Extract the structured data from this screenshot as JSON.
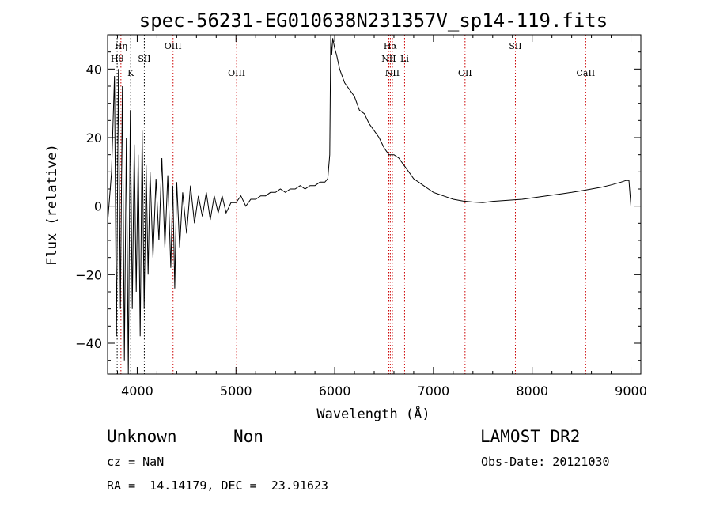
{
  "chart_data": {
    "type": "line",
    "title": "spec-56231-EG010638N231357V_sp14-119.fits",
    "xlabel": "Wavelength (Å)",
    "ylabel": "Flux (relative)",
    "xlim": [
      3700,
      9100
    ],
    "ylim": [
      -49,
      50
    ],
    "x_ticks": [
      4000,
      5000,
      6000,
      7000,
      8000,
      9000
    ],
    "y_ticks": [
      -40,
      -20,
      0,
      20,
      40
    ],
    "x_tick_labels": [
      "4000",
      "5000",
      "6000",
      "7000",
      "8000",
      "9000"
    ],
    "y_tick_labels": [
      "−40",
      "−20",
      "0",
      "20",
      "40"
    ],
    "grid": false,
    "line_color": "#000000",
    "marker_color": "#cc0000",
    "series": [
      {
        "x": [
          3700,
          3740,
          3770,
          3790,
          3810,
          3830,
          3850,
          3870,
          3890,
          3910,
          3930,
          3950,
          3970,
          3990,
          4010,
          4030,
          4050,
          4070,
          4090,
          4110,
          4130,
          4160,
          4190,
          4220,
          4250,
          4280,
          4310,
          4340,
          4360,
          4380,
          4400,
          4430,
          4460,
          4500,
          4540,
          4580,
          4620,
          4660,
          4700,
          4740,
          4780,
          4820,
          4860,
          4900,
          4950,
          5000,
          5050,
          5100,
          5150,
          5200,
          5250,
          5300,
          5350,
          5400,
          5450,
          5500,
          5550,
          5600,
          5650,
          5700,
          5750,
          5800,
          5850,
          5900,
          5930,
          5950,
          5960,
          5970,
          5980,
          6000,
          6020,
          6050,
          6100,
          6150,
          6200,
          6250,
          6300,
          6350,
          6400,
          6450,
          6500,
          6550,
          6600,
          6650,
          6700,
          6750,
          6800,
          6850,
          6900,
          6950,
          7000,
          7050,
          7100,
          7200,
          7300,
          7400,
          7500,
          7600,
          7700,
          7800,
          7900,
          8000,
          8100,
          8200,
          8300,
          8400,
          8500,
          8600,
          8700,
          8800,
          8900,
          8950,
          8980,
          9000
        ],
        "y": [
          -5,
          10,
          38,
          -38,
          40,
          -30,
          35,
          -45,
          20,
          -50,
          28,
          -30,
          18,
          -25,
          15,
          -38,
          22,
          -30,
          12,
          -20,
          10,
          -15,
          8,
          -10,
          14,
          -12,
          9,
          -18,
          6,
          -24,
          7,
          -12,
          4,
          -8,
          6,
          -5,
          3,
          -3,
          4,
          -4,
          3,
          -2,
          3,
          -2,
          1,
          1,
          3,
          0,
          2,
          2,
          3,
          3,
          4,
          4,
          5,
          4,
          5,
          5,
          6,
          5,
          6,
          6,
          7,
          7,
          8,
          15,
          50,
          44,
          49,
          46,
          44,
          40,
          36,
          34,
          32,
          28,
          27,
          24,
          22,
          20,
          17,
          15,
          15,
          14,
          12,
          10,
          8,
          7,
          6,
          5,
          4,
          3.5,
          3,
          2,
          1.5,
          1.2,
          1.0,
          1.4,
          1.6,
          1.8,
          2.0,
          2.4,
          2.8,
          3.2,
          3.6,
          4.0,
          4.5,
          5.0,
          5.5,
          6.2,
          7.0,
          7.5,
          7.5,
          0
        ]
      }
    ],
    "annotation_lines": [
      {
        "label": "Hη",
        "x": 3835,
        "row": 1,
        "color": "#cc0000"
      },
      {
        "label": "Hθ",
        "x": 3797,
        "row": 2,
        "color": "#000000"
      },
      {
        "label": "K",
        "x": 3934,
        "row": 3,
        "color": "#000000"
      },
      {
        "label": "SII",
        "x": 4072,
        "row": 2,
        "color": "#000000"
      },
      {
        "label": "OIII",
        "x": 4363,
        "row": 1,
        "color": "#cc0000"
      },
      {
        "label": "OIII",
        "x": 5007,
        "row": 3,
        "color": "#cc0000"
      },
      {
        "label": "Hα",
        "x": 6563,
        "row": 1,
        "color": "#cc0000"
      },
      {
        "label": "NII",
        "x": 6548,
        "row": 2,
        "color": "#cc0000"
      },
      {
        "label": "NII",
        "x": 6584,
        "row": 3,
        "color": "#cc0000"
      },
      {
        "label": "Li",
        "x": 6708,
        "row": 2,
        "color": "#cc0000"
      },
      {
        "label": "OII",
        "x": 7320,
        "row": 3,
        "color": "#cc0000"
      },
      {
        "label": "SII",
        "x": 7830,
        "row": 1,
        "color": "#cc0000"
      },
      {
        "label": "CaII",
        "x": 8542,
        "row": 3,
        "color": "#cc0000"
      }
    ]
  },
  "footer": {
    "class_label": "Unknown",
    "subclass_label": "Non",
    "survey": "LAMOST DR2",
    "redshift": "cz = NaN",
    "obs_date": "Obs-Date: 20121030",
    "coords": "RA =  14.14179, DEC =  23.91623"
  }
}
